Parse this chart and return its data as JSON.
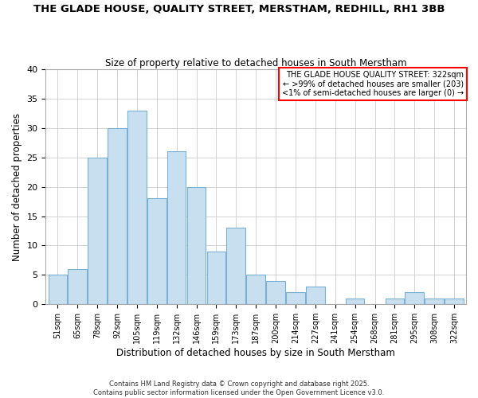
{
  "title1": "THE GLADE HOUSE, QUALITY STREET, MERSTHAM, REDHILL, RH1 3BB",
  "title2": "Size of property relative to detached houses in South Merstham",
  "xlabel": "Distribution of detached houses by size in South Merstham",
  "ylabel": "Number of detached properties",
  "bar_labels": [
    "51sqm",
    "65sqm",
    "78sqm",
    "92sqm",
    "105sqm",
    "119sqm",
    "132sqm",
    "146sqm",
    "159sqm",
    "173sqm",
    "187sqm",
    "200sqm",
    "214sqm",
    "227sqm",
    "241sqm",
    "254sqm",
    "268sqm",
    "281sqm",
    "295sqm",
    "308sqm",
    "322sqm"
  ],
  "bar_values": [
    5,
    6,
    25,
    30,
    33,
    18,
    26,
    20,
    9,
    13,
    5,
    4,
    2,
    3,
    0,
    1,
    0,
    1,
    2,
    1,
    1
  ],
  "bar_color": "#c8dff0",
  "bar_edge_color": "#7ab0d4",
  "ylim": [
    0,
    40
  ],
  "yticks": [
    0,
    5,
    10,
    15,
    20,
    25,
    30,
    35,
    40
  ],
  "annotation_line1": "THE GLADE HOUSE QUALITY STREET: 322sqm",
  "annotation_line2": "← >99% of detached houses are smaller (203)",
  "annotation_line3": "<1% of semi-detached houses are larger (0) →",
  "annotation_box_color": "#ff0000",
  "footer1": "Contains HM Land Registry data © Crown copyright and database right 2025.",
  "footer2": "Contains public sector information licensed under the Open Government Licence v3.0.",
  "bg_color": "#ffffff",
  "grid_color": "#cccccc"
}
